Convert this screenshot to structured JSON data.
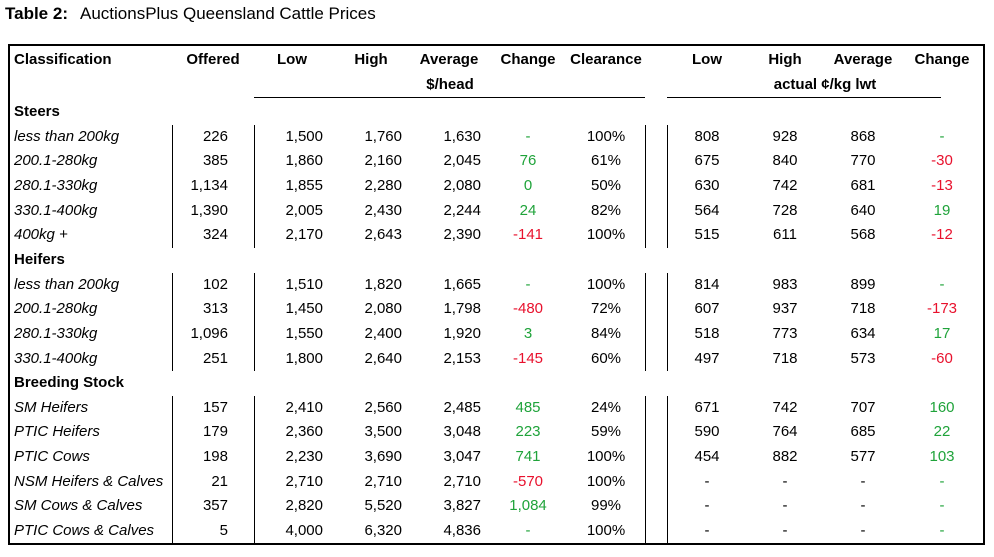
{
  "title": {
    "label": "Table 2:",
    "text": "AuctionsPlus Queensland Cattle Prices"
  },
  "table": {
    "columns": [
      "Classification",
      "Offered",
      "Low",
      "High",
      "Average",
      "Change",
      "Clearance",
      "Low",
      "High",
      "Average",
      "Change"
    ],
    "units": [
      "$/head",
      "actual ¢/kg lwt"
    ],
    "sections": [
      {
        "name": "Steers",
        "rows": [
          [
            "less than 200kg",
            "226",
            "1,500",
            "1,760",
            "1,630",
            "-",
            "100%",
            "808",
            "928",
            "868",
            "-"
          ],
          [
            "200.1-280kg",
            "385",
            "1,860",
            "2,160",
            "2,045",
            "76",
            "61%",
            "675",
            "840",
            "770",
            "-30"
          ],
          [
            "280.1-330kg",
            "1,134",
            "1,855",
            "2,280",
            "2,080",
            "0",
            "50%",
            "630",
            "742",
            "681",
            "-13"
          ],
          [
            "330.1-400kg",
            "1,390",
            "2,005",
            "2,430",
            "2,244",
            "24",
            "82%",
            "564",
            "728",
            "640",
            "19"
          ],
          [
            "400kg +",
            "324",
            "2,170",
            "2,643",
            "2,390",
            "-141",
            "100%",
            "515",
            "611",
            "568",
            "-12"
          ]
        ]
      },
      {
        "name": "Heifers",
        "rows": [
          [
            "less than 200kg",
            "102",
            "1,510",
            "1,820",
            "1,665",
            "-",
            "100%",
            "814",
            "983",
            "899",
            "-"
          ],
          [
            "200.1-280kg",
            "313",
            "1,450",
            "2,080",
            "1,798",
            "-480",
            "72%",
            "607",
            "937",
            "718",
            "-173"
          ],
          [
            "280.1-330kg",
            "1,096",
            "1,550",
            "2,400",
            "1,920",
            "3",
            "84%",
            "518",
            "773",
            "634",
            "17"
          ],
          [
            "330.1-400kg",
            "251",
            "1,800",
            "2,640",
            "2,153",
            "-145",
            "60%",
            "497",
            "718",
            "573",
            "-60"
          ]
        ]
      },
      {
        "name": "Breeding Stock",
        "rows": [
          [
            "SM Heifers",
            "157",
            "2,410",
            "2,560",
            "2,485",
            "485",
            "24%",
            "671",
            "742",
            "707",
            "160"
          ],
          [
            "PTIC Heifers",
            "179",
            "2,360",
            "3,500",
            "3,048",
            "223",
            "59%",
            "590",
            "764",
            "685",
            "22"
          ],
          [
            "PTIC Cows",
            "198",
            "2,230",
            "3,690",
            "3,047",
            "741",
            "100%",
            "454",
            "882",
            "577",
            "103"
          ],
          [
            "NSM Heifers & Calves",
            "21",
            "2,710",
            "2,710",
            "2,710",
            "-570",
            "100%",
            "-",
            "-",
            "-",
            "-"
          ],
          [
            "SM Cows & Calves",
            "357",
            "2,820",
            "5,520",
            "3,827",
            "1,084",
            "99%",
            "-",
            "-",
            "-",
            "-"
          ],
          [
            "PTIC Cows & Calves",
            "5",
            "4,000",
            "6,320",
            "4,836",
            "-",
            "100%",
            "-",
            "-",
            "-",
            "-"
          ]
        ]
      }
    ]
  }
}
